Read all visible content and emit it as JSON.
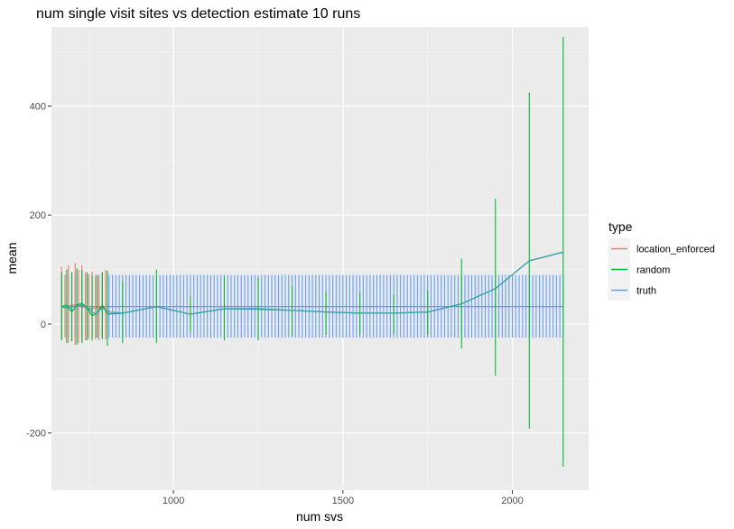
{
  "chart_data": {
    "type": "line",
    "title": "num single visit sites vs detection estimate 10 runs",
    "xlabel": "num svs",
    "ylabel": "mean",
    "xlim": [
      640,
      2225
    ],
    "ylim": [
      -305,
      545
    ],
    "x_ticks": [
      1000,
      1500,
      2000
    ],
    "y_ticks": [
      -200,
      0,
      200,
      400
    ],
    "grid": true,
    "legend": {
      "title": "type",
      "position": "right"
    },
    "series": [
      {
        "name": "location_enforced",
        "color": "#F8766D",
        "x": [
          670,
          680,
          690,
          700,
          710,
          720,
          730,
          740,
          750,
          760,
          770,
          780,
          790,
          800
        ],
        "y": [
          30,
          32,
          33,
          34,
          36,
          35,
          32,
          30,
          29,
          28,
          30,
          31,
          29,
          30
        ],
        "ymin": [
          -30,
          -25,
          -35,
          -30,
          -38,
          -35,
          -32,
          -30,
          -28,
          -25,
          -28,
          -30,
          -25,
          -28
        ],
        "ymax": [
          105,
          90,
          108,
          95,
          112,
          100,
          108,
          95,
          92,
          96,
          90,
          88,
          95,
          99
        ]
      },
      {
        "name": "random",
        "color": "#00BA38",
        "x": [
          670,
          685,
          700,
          715,
          730,
          745,
          760,
          775,
          790,
          805,
          850,
          950,
          1050,
          1150,
          1250,
          1350,
          1450,
          1550,
          1650,
          1750,
          1850,
          1950,
          2050,
          2150
        ],
        "y": [
          32,
          35,
          22,
          35,
          38,
          30,
          15,
          20,
          35,
          18,
          20,
          32,
          18,
          28,
          28,
          25,
          22,
          20,
          20,
          22,
          37,
          65,
          116,
          132
        ],
        "ymin": [
          -30,
          -35,
          -32,
          -38,
          -35,
          -30,
          -30,
          -25,
          -28,
          -40,
          -35,
          -35,
          -15,
          -30,
          -30,
          -22,
          -20,
          -20,
          -18,
          -20,
          -45,
          -95,
          -192,
          -262
        ],
        "ymax": [
          95,
          100,
          95,
          102,
          100,
          95,
          90,
          90,
          95,
          98,
          78,
          100,
          52,
          88,
          85,
          70,
          60,
          58,
          55,
          62,
          120,
          230,
          425,
          527
        ]
      },
      {
        "name": "truth",
        "color": "#619CFF",
        "x_start": 670,
        "x_end": 2150,
        "x_step": 10,
        "y": 32,
        "ymin": -25,
        "ymax": 90
      }
    ],
    "smooth_line": {
      "color": "#3A9FB0",
      "x": [
        670,
        690,
        710,
        730,
        750,
        770,
        790,
        810,
        850,
        950,
        1050,
        1150,
        1250,
        1350,
        1450,
        1550,
        1650,
        1750,
        1850,
        1950,
        2050,
        2150
      ],
      "y": [
        31,
        29,
        33,
        35,
        28,
        18,
        30,
        22,
        20,
        32,
        18,
        28,
        27,
        25,
        22,
        20,
        20,
        22,
        37,
        65,
        116,
        132
      ]
    }
  }
}
